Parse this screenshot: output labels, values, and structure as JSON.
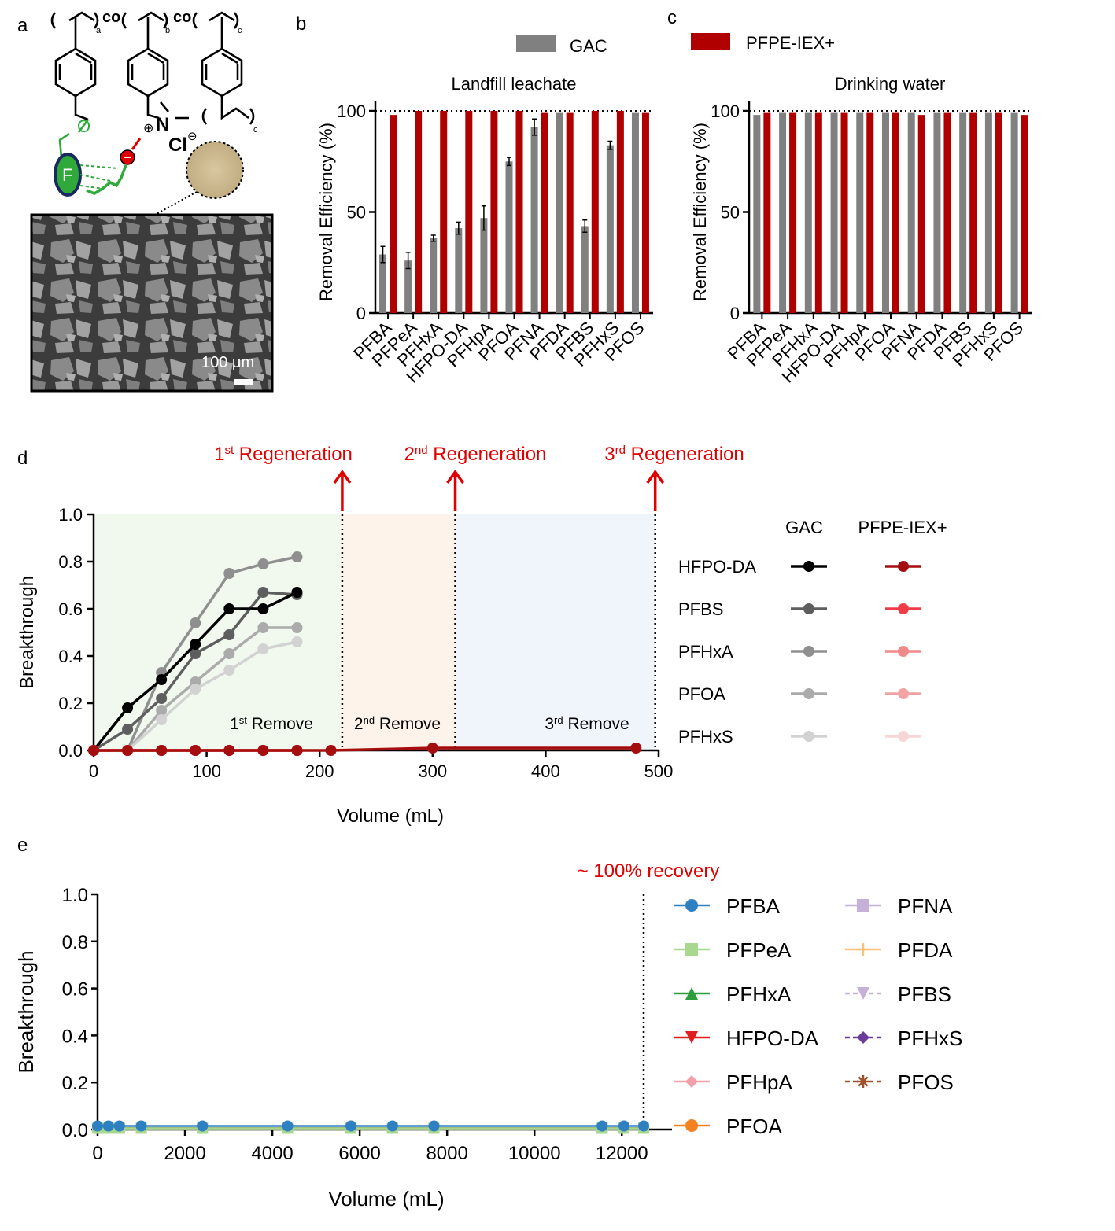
{
  "panel_letters": {
    "a": "a",
    "b": "b",
    "c": "c",
    "d": "d",
    "e": "e"
  },
  "colors": {
    "gac": "#808080",
    "pfpe": "#b00000",
    "annotation_red": "#e00000",
    "zone1": "#f1f8ee",
    "zone2": "#fdf3ea",
    "zone3": "#f0f5fc"
  },
  "panel_a": {
    "subscripts": {
      "a": "a",
      "b": "b",
      "c1": "c",
      "c2": "c"
    },
    "co": "co",
    "oxygen": "O",
    "nitrogen": "N",
    "chloride": "Cl",
    "fluorine_badge": "F",
    "scale_bar": "100 μm"
  },
  "legend_bc": {
    "gac": "GAC",
    "pfpe": "PFPE-IEX+"
  },
  "chart_data": [
    {
      "id": "b",
      "type": "bar",
      "title": "Landfill leachate",
      "ylabel": "Removal Efficiency (%)",
      "ylim": [
        0,
        100
      ],
      "yticks": [
        0,
        50,
        100
      ],
      "reference_line": 100,
      "categories": [
        "PFBA",
        "PFPeA",
        "PFHxA",
        "HFPO-DA",
        "PFHpA",
        "PFOA",
        "PFNA",
        "PFDA",
        "PFBS",
        "PFHxS",
        "PFOS"
      ],
      "series": [
        {
          "name": "GAC",
          "values": [
            29,
            26,
            37,
            42,
            47,
            75,
            92,
            99,
            43,
            83,
            99
          ],
          "errors": [
            4,
            4,
            1.5,
            3,
            6,
            2,
            4,
            0,
            3,
            2,
            0
          ]
        },
        {
          "name": "PFPE-IEX+",
          "values": [
            98,
            100,
            100,
            100,
            100,
            100,
            99,
            99,
            100,
            100,
            99
          ]
        }
      ]
    },
    {
      "id": "c",
      "type": "bar",
      "title": "Drinking water",
      "ylabel": "Removal Efficiency (%)",
      "ylim": [
        0,
        100
      ],
      "yticks": [
        0,
        50,
        100
      ],
      "reference_line": 100,
      "categories": [
        "PFBA",
        "PFPeA",
        "PFHxA",
        "HFPO-DA",
        "PFHpA",
        "PFOA",
        "PFNA",
        "PFDA",
        "PFBS",
        "PFHxS",
        "PFOS"
      ],
      "series": [
        {
          "name": "GAC",
          "values": [
            98,
            99,
            99,
            99,
            99,
            99,
            99,
            99,
            99,
            99,
            99
          ]
        },
        {
          "name": "PFPE-IEX+",
          "values": [
            99,
            99,
            99,
            99,
            99,
            99,
            98,
            99,
            99,
            99,
            98
          ]
        }
      ]
    },
    {
      "id": "d",
      "type": "line",
      "xlabel": "Volume (mL)",
      "ylabel": "Breakthrough",
      "xlim": [
        0,
        500
      ],
      "ylim": [
        0,
        1.0
      ],
      "xticks": [
        0,
        100,
        200,
        300,
        400,
        500
      ],
      "yticks": [
        "0.0",
        "0.2",
        "0.4",
        "0.6",
        "0.8",
        "1.0"
      ],
      "regenerations": [
        {
          "x": 220,
          "ordinal": "1",
          "sup": "st",
          "text": " Regeneration"
        },
        {
          "x": 320,
          "ordinal": "2",
          "sup": "nd",
          "text": " Regeneration"
        },
        {
          "x": 497,
          "ordinal": "3",
          "sup": "rd",
          "text": " Regeneration"
        }
      ],
      "zones": [
        {
          "from": 0,
          "to": 220,
          "ordinal": "1",
          "sup": "st",
          "text": " Remove"
        },
        {
          "from": 220,
          "to": 320,
          "ordinal": "2",
          "sup": "nd",
          "text": " Remove"
        },
        {
          "from": 320,
          "to": 497,
          "ordinal": "3",
          "sup": "rd",
          "text": " Remove"
        }
      ],
      "legend_headers": {
        "gac": "GAC",
        "pfpe": "PFPE-IEX+"
      },
      "legend_rows": [
        "HFPO-DA",
        "PFBS",
        "PFHxA",
        "PFOA",
        "PFHxS"
      ],
      "series": [
        {
          "name": "PFHxA",
          "group": "GAC",
          "color": "#8f8f8f",
          "x": [
            0,
            30,
            60,
            90,
            120,
            150,
            180
          ],
          "y": [
            0,
            0,
            0.33,
            0.54,
            0.75,
            0.79,
            0.82
          ]
        },
        {
          "name": "PFBS",
          "group": "GAC",
          "color": "#5e5e5e",
          "x": [
            0,
            30,
            60,
            90,
            120,
            150,
            180
          ],
          "y": [
            0,
            0.09,
            0.22,
            0.41,
            0.49,
            0.67,
            0.66
          ]
        },
        {
          "name": "PFOA",
          "group": "GAC",
          "color": "#ababab",
          "x": [
            0,
            30,
            60,
            90,
            120,
            150,
            180
          ],
          "y": [
            0,
            0,
            0.17,
            0.29,
            0.41,
            0.52,
            0.52
          ]
        },
        {
          "name": "PFHxS",
          "group": "GAC",
          "color": "#d2d2d2",
          "x": [
            0,
            30,
            60,
            90,
            120,
            150,
            180
          ],
          "y": [
            0,
            0,
            0.13,
            0.26,
            0.34,
            0.43,
            0.46
          ]
        },
        {
          "name": "HFPO-DA",
          "group": "GAC",
          "color": "#000000",
          "x": [
            0,
            30,
            60,
            90,
            120,
            150,
            180
          ],
          "y": [
            0,
            0.18,
            0.3,
            0.45,
            0.6,
            0.6,
            0.67
          ]
        },
        {
          "name": "PFHxS",
          "group": "PFPE-IEX+",
          "color": "#f6d6d6",
          "x": [
            0,
            30,
            60,
            90,
            120,
            150,
            180
          ],
          "y": [
            0,
            0,
            0,
            0,
            0,
            0,
            0
          ]
        },
        {
          "name": "PFOA",
          "group": "PFPE-IEX+",
          "color": "#f3a3a3",
          "x": [
            0,
            30,
            60,
            90,
            120,
            150,
            180
          ],
          "y": [
            0,
            0,
            0,
            0,
            0,
            0,
            0
          ]
        },
        {
          "name": "PFHxA",
          "group": "PFPE-IEX+",
          "color": "#f08a8a",
          "x": [
            0,
            30,
            60,
            90,
            120,
            150,
            180
          ],
          "y": [
            0,
            0,
            0,
            0,
            0,
            0,
            0
          ]
        },
        {
          "name": "PFBS",
          "group": "PFPE-IEX+",
          "color": "#f03c46",
          "x": [
            0,
            30,
            60,
            90,
            120,
            150,
            180
          ],
          "y": [
            0,
            0,
            0,
            0,
            0,
            0,
            0
          ]
        },
        {
          "name": "HFPO-DA",
          "group": "PFPE-IEX+",
          "color": "#a50e0e",
          "x": [
            0,
            30,
            60,
            90,
            120,
            150,
            180,
            210,
            300,
            480
          ],
          "y": [
            0,
            0,
            0,
            0,
            0,
            0,
            0,
            0,
            0.01,
            0.01
          ]
        }
      ]
    },
    {
      "id": "e",
      "type": "line",
      "xlabel": "Volume (mL)",
      "ylabel": "Breakthrough",
      "xlim": [
        0,
        12500
      ],
      "ylim": [
        0,
        1.0
      ],
      "xticks": [
        0,
        2000,
        4000,
        6000,
        8000,
        10000,
        12000
      ],
      "yticks": [
        "0.0",
        "0.2",
        "0.4",
        "0.6",
        "0.8",
        "1.0"
      ],
      "annotation": "~ 100% recovery",
      "annotation_x": 12500,
      "x_values": [
        0,
        250,
        500,
        1000,
        2400,
        4350,
        5800,
        6750,
        7700,
        11550,
        12050,
        12500
      ],
      "series": [
        {
          "name": "PFBA",
          "color": "#2f80c0",
          "marker": "circle",
          "dash": false,
          "y": 0.015
        },
        {
          "name": "PFPeA",
          "color": "#a8d890",
          "marker": "square",
          "dash": false,
          "y": 0.005
        },
        {
          "name": "PFHxA",
          "color": "#2e9e3c",
          "marker": "triangle-up",
          "dash": false,
          "y": 0.005
        },
        {
          "name": "HFPO-DA",
          "color": "#e02020",
          "marker": "triangle-down",
          "dash": false,
          "y": 0.005
        },
        {
          "name": "PFHpA",
          "color": "#f4a0a8",
          "marker": "diamond",
          "dash": false,
          "y": 0.005
        },
        {
          "name": "PFOA",
          "color": "#f58220",
          "marker": "circle",
          "dash": false,
          "y": 0.005
        },
        {
          "name": "PFNA",
          "color": "#c5b0d8",
          "marker": "square",
          "dash": false,
          "y": 0.005
        },
        {
          "name": "PFDA",
          "color": "#f7c27a",
          "marker": "plus",
          "dash": false,
          "y": 0.005
        },
        {
          "name": "PFBS",
          "color": "#c5b0d8",
          "marker": "triangle-down",
          "dash": true,
          "y": 0.005
        },
        {
          "name": "PFHxS",
          "color": "#6a3d9a",
          "marker": "diamond",
          "dash": true,
          "y": 0.005
        },
        {
          "name": "PFOS",
          "color": "#a0522d",
          "marker": "star",
          "dash": true,
          "y": 0.005
        }
      ]
    }
  ]
}
